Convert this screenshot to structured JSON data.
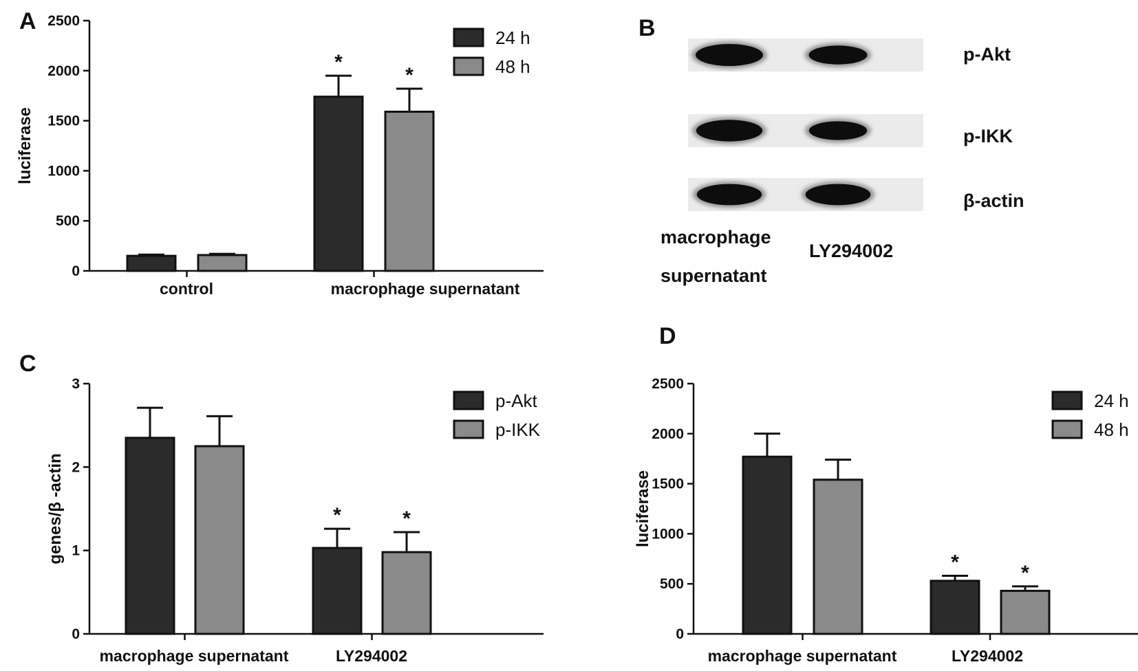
{
  "chart_data": [
    {
      "panel": "A",
      "type": "bar",
      "title": "",
      "xlabel": "",
      "ylabel": "luciferase",
      "ylim": [
        0,
        2500
      ],
      "yticks": [
        0,
        500,
        1000,
        1500,
        2000,
        2500
      ],
      "categories": [
        "control",
        "macrophage supernatant"
      ],
      "series": [
        {
          "name": "24 h",
          "color": "#2b2b2b",
          "values": [
            150,
            1740
          ],
          "errors": [
            12,
            210
          ],
          "significant": [
            false,
            true
          ]
        },
        {
          "name": "48 h",
          "color": "#8a8a8a",
          "values": [
            158,
            1590
          ],
          "errors": [
            12,
            230
          ],
          "significant": [
            false,
            true
          ]
        }
      ],
      "significance_mark": "*",
      "legend": "top-right"
    },
    {
      "panel": "B",
      "type": "table",
      "rows": [
        "p-Akt",
        "p-IKK",
        "β-actin"
      ],
      "lanes": [
        "macrophage supernatant",
        "LY294002"
      ],
      "lane_label_lines": [
        [
          "macrophage",
          "supernatant"
        ],
        [
          "LY294002"
        ]
      ],
      "band_intensity": [
        [
          1.0,
          0.62
        ],
        [
          0.95,
          0.6
        ],
        [
          0.9,
          0.9
        ]
      ]
    },
    {
      "panel": "C",
      "type": "bar",
      "title": "",
      "xlabel": "",
      "ylabel": "genes/β -actin",
      "ylim": [
        0,
        3
      ],
      "yticks": [
        0,
        1,
        2,
        3
      ],
      "categories": [
        "macrophage supernatant",
        "LY294002"
      ],
      "series": [
        {
          "name": "p-Akt",
          "color": "#2b2b2b",
          "values": [
            2.35,
            1.03
          ],
          "errors": [
            0.36,
            0.23
          ],
          "significant": [
            false,
            true
          ]
        },
        {
          "name": "p-IKK",
          "color": "#8a8a8a",
          "values": [
            2.25,
            0.98
          ],
          "errors": [
            0.36,
            0.24
          ],
          "significant": [
            false,
            true
          ]
        }
      ],
      "significance_mark": "*",
      "legend": "top-right"
    },
    {
      "panel": "D",
      "type": "bar",
      "title": "",
      "xlabel": "",
      "ylabel": "luciferase",
      "ylim": [
        0,
        2500
      ],
      "yticks": [
        0,
        500,
        1000,
        1500,
        2000,
        2500
      ],
      "categories": [
        "macrophage supernatant",
        "LY294002"
      ],
      "series": [
        {
          "name": "24 h",
          "color": "#2b2b2b",
          "values": [
            1770,
            530
          ],
          "errors": [
            230,
            50
          ],
          "significant": [
            false,
            true
          ]
        },
        {
          "name": "48 h",
          "color": "#8a8a8a",
          "values": [
            1540,
            430
          ],
          "errors": [
            200,
            45
          ],
          "significant": [
            false,
            true
          ]
        }
      ],
      "significance_mark": "*",
      "legend": "top-right"
    }
  ]
}
